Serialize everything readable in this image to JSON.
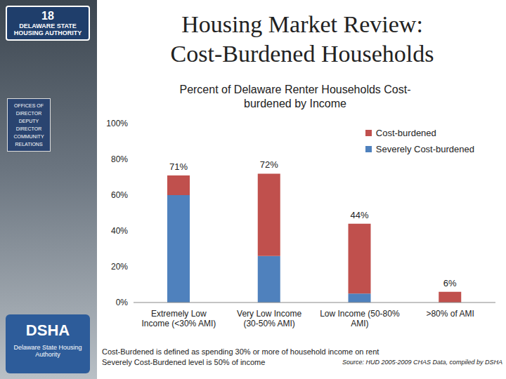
{
  "slide": {
    "title_lines": [
      "Housing Market Review:",
      "Cost-Burdened Households"
    ],
    "footnotes": [
      "Cost-Burdened is defined as spending 30% or more of household income on rent",
      "Severely Cost-Burdened level is 50% of income"
    ],
    "source": "Source: HUD 2005-2009 CHAS Data, compiled by DSHA"
  },
  "sidebar": {
    "sign": [
      "18",
      "DELAWARE STATE",
      "HOUSING AUTHORITY"
    ],
    "door_sign": [
      "OFFICES OF",
      "DIRECTOR",
      "DEPUTY",
      "DIRECTOR",
      "COMMUNITY",
      "RELATIONS"
    ],
    "logo": "DSHA",
    "logo_text": "Delaware State Housing Authority"
  },
  "chart_data": {
    "type": "bar",
    "stacked": true,
    "title": "Percent of Delaware Renter Households Cost-burdened by Income",
    "categories": [
      "Extremely Low Income (<30% AMI)",
      "Very Low Income (30-50% AMI)",
      "Low Income (50-80% AMI)",
      ">80% of AMI"
    ],
    "series": [
      {
        "name": "Severely Cost-burdened",
        "color": "#4f81bd",
        "values": [
          60,
          26,
          5,
          0
        ]
      },
      {
        "name": "Cost-burdened",
        "color": "#c0504d",
        "values": [
          11,
          46,
          39,
          6
        ]
      }
    ],
    "totals": [
      71,
      72,
      44,
      6
    ],
    "total_labels": [
      "71%",
      "72%",
      "44%",
      "6%"
    ],
    "ylim": [
      0,
      100
    ],
    "yticks": [
      {
        "value": 0,
        "label": "0%"
      },
      {
        "value": 20,
        "label": "20%"
      },
      {
        "value": 40,
        "label": "40%"
      },
      {
        "value": 60,
        "label": "60%"
      },
      {
        "value": 80,
        "label": "80%"
      },
      {
        "value": 100,
        "label": "100%"
      }
    ],
    "grid": false,
    "legend": "upper right"
  }
}
